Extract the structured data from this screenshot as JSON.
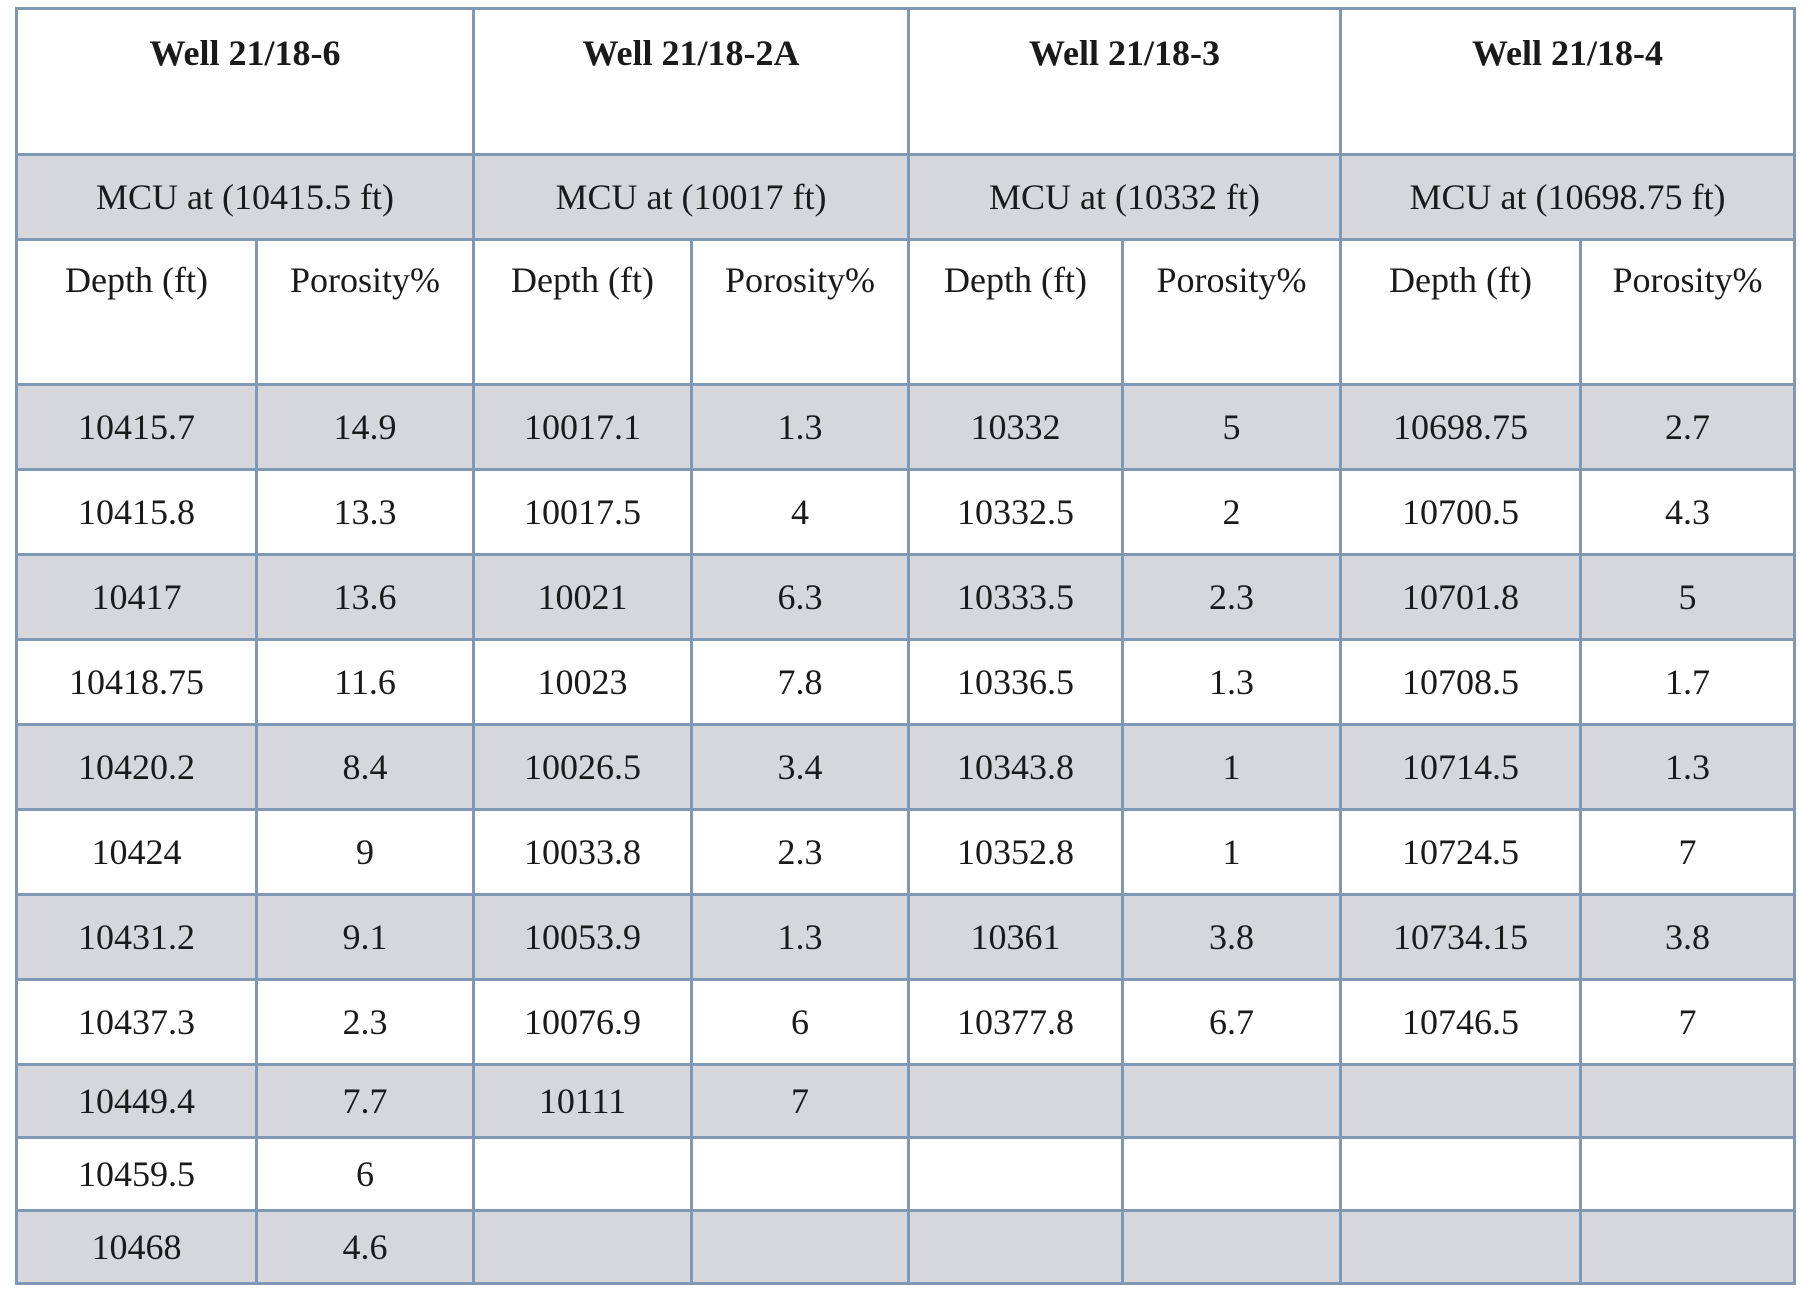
{
  "wells": [
    {
      "name": "Well 21/18-6",
      "mcu": "MCU at (10415.5  ft)"
    },
    {
      "name": "Well 21/18-2A",
      "mcu": "MCU at (10017  ft)"
    },
    {
      "name": "Well 21/18-3",
      "mcu": "MCU at (10332  ft)"
    },
    {
      "name": "Well 21/18-4",
      "mcu": "MCU at (10698.75  ft)"
    }
  ],
  "column_headers": {
    "depth": "Depth (ft)",
    "porosity": "Porosity%"
  },
  "rows": [
    [
      "10415.7",
      "14.9",
      "10017.1",
      "1.3",
      "10332",
      "5",
      "10698.75",
      "2.7"
    ],
    [
      "10415.8",
      "13.3",
      "10017.5",
      "4",
      "10332.5",
      "2",
      "10700.5",
      "4.3"
    ],
    [
      "10417",
      "13.6",
      "10021",
      "6.3",
      "10333.5",
      "2.3",
      "10701.8",
      "5"
    ],
    [
      "10418.75",
      "11.6",
      "10023",
      "7.8",
      "10336.5",
      "1.3",
      "10708.5",
      "1.7"
    ],
    [
      "10420.2",
      "8.4",
      "10026.5",
      "3.4",
      "10343.8",
      "1",
      "10714.5",
      "1.3"
    ],
    [
      "10424",
      "9",
      "10033.8",
      "2.3",
      "10352.8",
      "1",
      "10724.5",
      "7"
    ],
    [
      "10431.2",
      "9.1",
      "10053.9",
      "1.3",
      "10361",
      "3.8",
      "10734.15",
      "3.8"
    ],
    [
      "10437.3",
      "2.3",
      "10076.9",
      "6",
      "10377.8",
      "6.7",
      "10746.5",
      "7"
    ],
    [
      "10449.4",
      "7.7",
      "10111",
      "7",
      "",
      "",
      "",
      ""
    ],
    [
      "10459.5",
      "6",
      "",
      "",
      "",
      "",
      "",
      ""
    ],
    [
      "10468",
      "4.6",
      "",
      "",
      "",
      "",
      "",
      ""
    ]
  ],
  "colors": {
    "border": "#7f98b5",
    "shade": "#d6d7db"
  }
}
